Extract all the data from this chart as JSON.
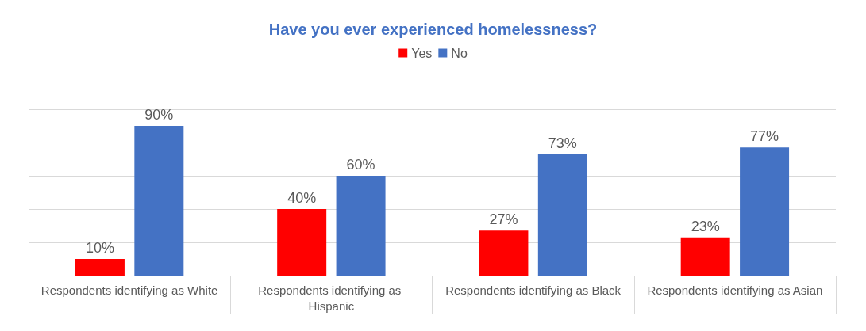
{
  "chart_data": {
    "type": "bar",
    "title": "Have you ever experienced homelessness?",
    "categories": [
      "Respondents identifying as White",
      "Respondents identifying as Hispanic",
      "Respondents identifying as Black",
      "Respondents identifying as Asian"
    ],
    "series": [
      {
        "name": "Yes",
        "color": "#ff0000",
        "values": [
          10,
          40,
          27,
          23
        ],
        "value_labels": [
          "10%",
          "40%",
          "27%",
          "23%"
        ]
      },
      {
        "name": "No",
        "color": "#4472c4",
        "values": [
          90,
          60,
          73,
          77
        ],
        "value_labels": [
          "90%",
          "60%",
          "73%",
          "77%"
        ]
      }
    ],
    "ylim": [
      0,
      100
    ],
    "yticks": [
      {
        "value": 0,
        "label": null
      },
      {
        "value": 20,
        "label": null
      },
      {
        "value": 40,
        "label": null
      },
      {
        "value": 60,
        "label": null
      },
      {
        "value": 80,
        "label": null
      },
      {
        "value": 100,
        "label": null
      }
    ],
    "grid": "y",
    "legend": "top",
    "tick_labels": "x"
  }
}
